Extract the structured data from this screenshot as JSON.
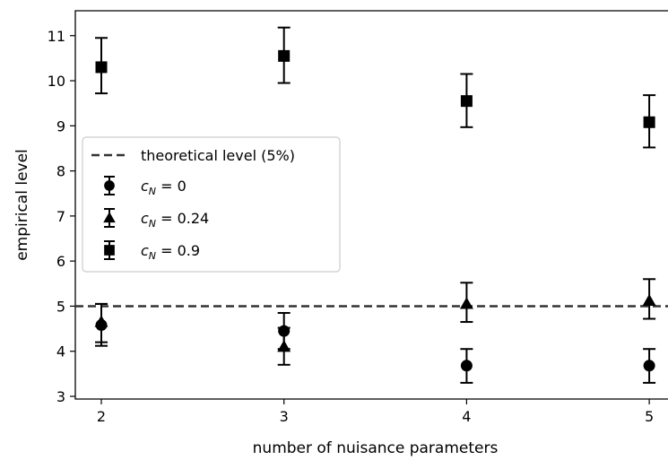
{
  "chart_data": {
    "type": "scatter",
    "title": "",
    "xlabel": "number of nuisance parameters",
    "ylabel": "empirical level",
    "x_ticks": [
      "2",
      "3",
      "4",
      "5"
    ],
    "y_ticks": [
      "3",
      "4",
      "5",
      "6",
      "7",
      "8",
      "9",
      "10",
      "11"
    ],
    "xlim": [
      1.85,
      5.1
    ],
    "ylim": [
      2.9,
      11.6
    ],
    "grid": false,
    "legend_position": "center-left",
    "reference_line": {
      "name": "theoretical level (5%)",
      "y": 5.0,
      "style": "dashed",
      "color": "#333333"
    },
    "series": [
      {
        "name": "c_N = 0",
        "label_main": "c",
        "label_sub": "N",
        "label_rest": " = 0",
        "marker": "circle",
        "color": "#000000",
        "x": [
          2,
          3,
          4,
          5
        ],
        "y": [
          4.58,
          4.45,
          3.68,
          3.68
        ],
        "err_low": [
          4.12,
          4.05,
          3.3,
          3.3
        ],
        "err_high": [
          5.05,
          4.85,
          4.05,
          4.05
        ]
      },
      {
        "name": "c_N = 0.24",
        "label_main": "c",
        "label_sub": "N",
        "label_rest": " = 0.24",
        "marker": "triangle",
        "color": "#000000",
        "x": [
          2,
          3,
          4,
          5
        ],
        "y": [
          4.65,
          4.1,
          5.05,
          5.12
        ],
        "err_low": [
          4.2,
          3.7,
          4.65,
          4.72
        ],
        "err_high": [
          5.05,
          4.52,
          5.52,
          5.6
        ]
      },
      {
        "name": "c_N = 0.9",
        "label_main": "c",
        "label_sub": "N",
        "label_rest": " = 0.9",
        "marker": "square",
        "color": "#000000",
        "x": [
          2,
          3,
          4,
          5
        ],
        "y": [
          10.3,
          10.55,
          9.55,
          9.08
        ],
        "err_low": [
          9.72,
          9.95,
          8.97,
          8.52
        ],
        "err_high": [
          10.95,
          11.18,
          10.15,
          9.68
        ]
      }
    ]
  }
}
